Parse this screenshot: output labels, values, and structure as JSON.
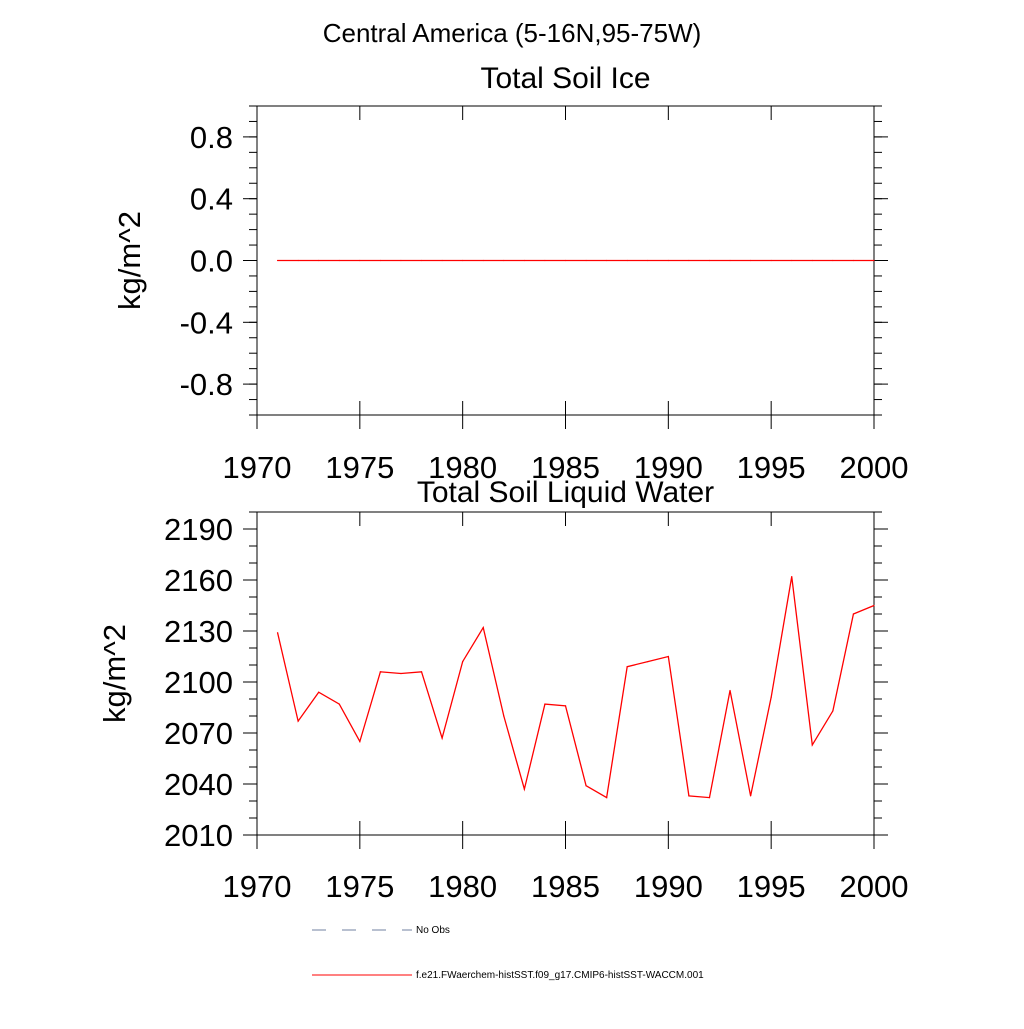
{
  "suptitle": "Central America (5-16N,95-75W)",
  "colors": {
    "model_line": "#ff0000",
    "obs_line": "#7080a0",
    "axis": "#000000"
  },
  "legend": [
    {
      "label": "No Obs",
      "style": "dashed",
      "color": "#7080a0"
    },
    {
      "label": "f.e21.FWaerchem-histSST.f09_g17.CMIP6-histSST-WACCM.001",
      "style": "solid",
      "color": "#ff0000"
    }
  ],
  "chart_data": [
    {
      "type": "line",
      "title": "Total Soil Ice",
      "ylabel": "kg/m^2",
      "xlabel": "",
      "xlim": [
        1970,
        2000
      ],
      "ylim": [
        -1.0,
        1.0
      ],
      "xticks": [
        1970,
        1975,
        1980,
        1985,
        1990,
        1995,
        2000
      ],
      "xtick_labels": [
        "1970",
        "1975",
        "1980",
        "1985",
        "1990",
        "1995",
        "2000"
      ],
      "yticks": [
        -0.8,
        -0.4,
        0.0,
        0.4,
        0.8
      ],
      "ytick_labels": [
        "-0.8",
        "-0.4",
        "0.0",
        "0.4",
        "0.8"
      ],
      "y_minor_step": 0.1,
      "x_minor_step": 1,
      "grid": false,
      "x": [
        1971,
        1972,
        1973,
        1974,
        1975,
        1976,
        1977,
        1978,
        1979,
        1980,
        1981,
        1982,
        1983,
        1984,
        1985,
        1986,
        1987,
        1988,
        1989,
        1990,
        1991,
        1992,
        1993,
        1994,
        1995,
        1996,
        1997,
        1998,
        1999,
        2000
      ],
      "series": [
        {
          "values": [
            0,
            0,
            0,
            0,
            0,
            0,
            0,
            0,
            0,
            0,
            0,
            0,
            0,
            0,
            0,
            0,
            0,
            0,
            0,
            0,
            0,
            0,
            0,
            0,
            0,
            0,
            0,
            0,
            0,
            0
          ],
          "color": "#ff0000"
        }
      ]
    },
    {
      "type": "line",
      "title": "Total Soil Liquid Water",
      "ylabel": "kg/m^2",
      "xlabel": "",
      "xlim": [
        1970,
        2000
      ],
      "ylim": [
        2010,
        2200
      ],
      "xticks": [
        1970,
        1975,
        1980,
        1985,
        1990,
        1995,
        2000
      ],
      "xtick_labels": [
        "1970",
        "1975",
        "1980",
        "1985",
        "1990",
        "1995",
        "2000"
      ],
      "yticks": [
        2010,
        2040,
        2070,
        2100,
        2130,
        2160,
        2190
      ],
      "ytick_labels": [
        "2010",
        "2040",
        "2070",
        "2100",
        "2130",
        "2160",
        "2190"
      ],
      "y_minor_step": 10,
      "x_minor_step": 1,
      "grid": false,
      "x": [
        1971,
        1972,
        1973,
        1974,
        1975,
        1976,
        1977,
        1978,
        1979,
        1980,
        1981,
        1982,
        1983,
        1984,
        1985,
        1986,
        1987,
        1988,
        1989,
        1990,
        1991,
        1992,
        1993,
        1994,
        1995,
        1996,
        1997,
        1998,
        1999,
        2000
      ],
      "series": [
        {
          "values": [
            2129,
            2077,
            2094,
            2087,
            2065,
            2106,
            2105,
            2106,
            2067,
            2112,
            2132,
            2080,
            2037,
            2087,
            2086,
            2039,
            2032,
            2109,
            2112,
            2115,
            2033,
            2032,
            2095,
            2033,
            2091,
            2162,
            2063,
            2083,
            2140,
            2145
          ],
          "color": "#ff0000"
        }
      ]
    }
  ]
}
